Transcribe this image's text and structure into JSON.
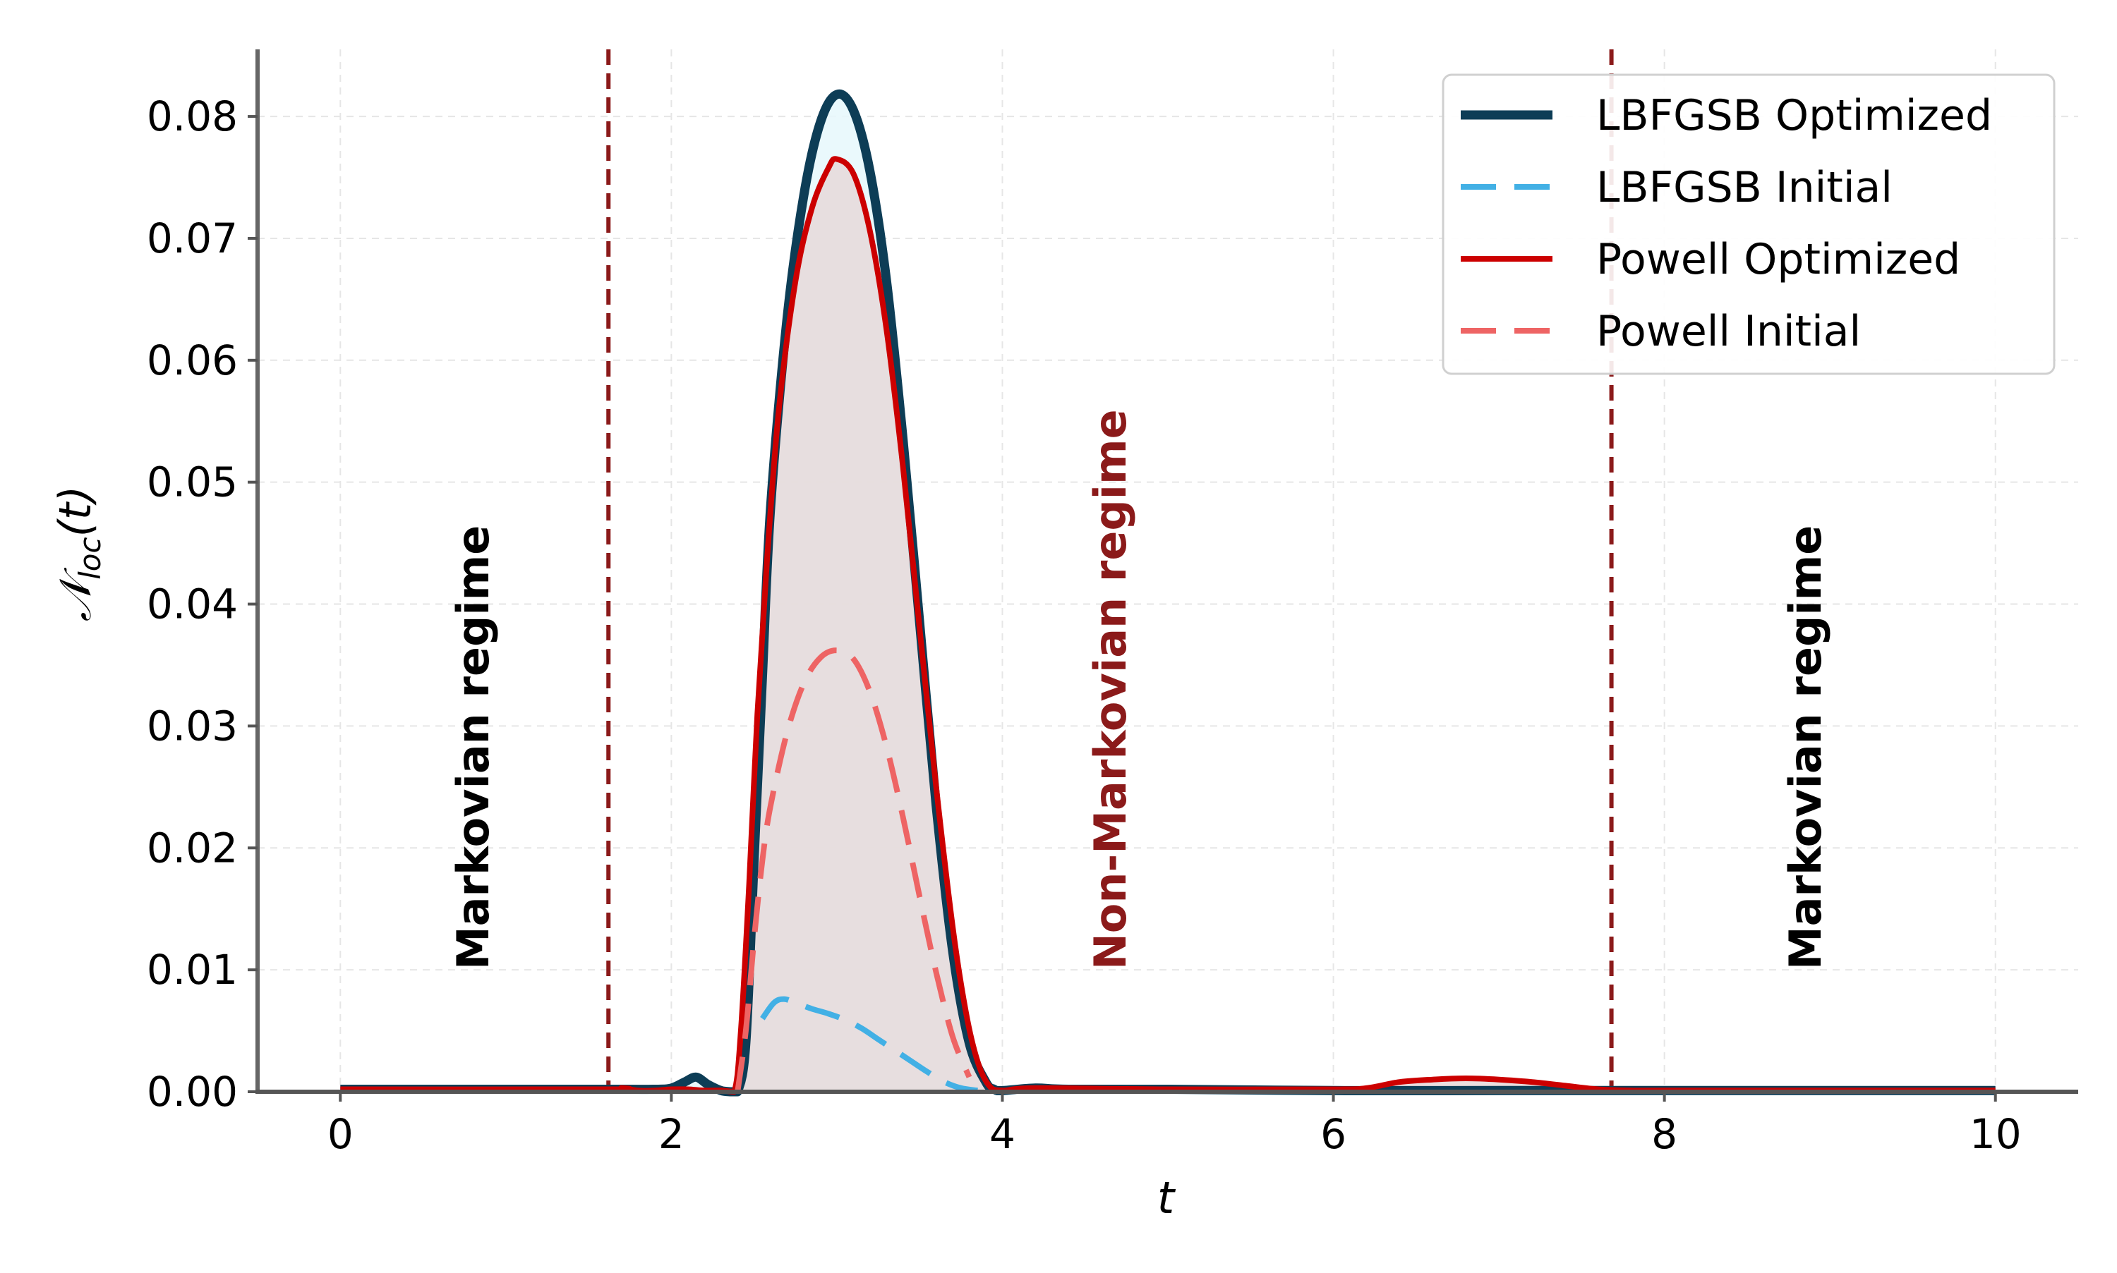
{
  "chart_data": {
    "type": "line",
    "title": "",
    "xlabel": "t",
    "ylabel": "𝒩loc(t)",
    "ylabel_main": "𝒩",
    "ylabel_sub": "loc",
    "ylabel_tail": "(t)",
    "xlim": [
      -0.5,
      10.5
    ],
    "ylim": [
      0,
      0.0855
    ],
    "xticks": [
      0,
      2,
      4,
      6,
      8,
      10
    ],
    "xtick_labels": [
      "0",
      "2",
      "4",
      "6",
      "8",
      "10"
    ],
    "yticks": [
      0,
      0.01,
      0.02,
      0.03,
      0.04,
      0.05,
      0.06,
      0.07,
      0.08
    ],
    "ytick_labels": [
      "0.00",
      "0.01",
      "0.02",
      "0.03",
      "0.04",
      "0.05",
      "0.06",
      "0.07",
      "0.08"
    ],
    "grid": true,
    "legend_position": "top-right",
    "regime_boundaries": [
      1.62,
      7.68
    ],
    "boundary_color": "#8b1a1a",
    "annotations": [
      {
        "text": "Markovian regime",
        "x": 0.8,
        "y_bottom": 0.01,
        "color": "#000000"
      },
      {
        "text": "Non-Markovian regime",
        "x": 4.65,
        "y_bottom": 0.01,
        "color": "#8b1a1a"
      },
      {
        "text": "Markovian regime",
        "x": 8.85,
        "y_bottom": 0.01,
        "color": "#000000"
      }
    ],
    "series": [
      {
        "name": "LBFGSB Optimized",
        "color": "#0d3d56",
        "style": "solid",
        "width": "thick",
        "fill": "#e6f8fb",
        "x": [
          0,
          1.6,
          1.9,
          2.0,
          2.08,
          2.15,
          2.22,
          2.3,
          2.36,
          2.4,
          2.45,
          2.5,
          2.55,
          2.6,
          2.7,
          2.8,
          2.9,
          3.0,
          3.1,
          3.2,
          3.3,
          3.4,
          3.5,
          3.6,
          3.7,
          3.8,
          3.9,
          3.95,
          4.0,
          4.2,
          4.4,
          5.0,
          6.0,
          7.0,
          8.0,
          10.0
        ],
        "y": [
          0.0002,
          0.0002,
          0.0002,
          0.0003,
          0.0008,
          0.0012,
          0.0006,
          0.0001,
          0.0,
          0.0,
          0.004,
          0.019,
          0.034,
          0.048,
          0.0635,
          0.0735,
          0.0795,
          0.0818,
          0.0805,
          0.0755,
          0.0665,
          0.0535,
          0.0385,
          0.0235,
          0.0115,
          0.004,
          0.0008,
          0.0002,
          0.0001,
          0.0003,
          0.0002,
          0.0002,
          0.0001,
          0.0001,
          0.0001,
          0.0001
        ]
      },
      {
        "name": "LBFGSB Initial",
        "color": "#42b0e5",
        "style": "dashed",
        "width": "medium",
        "fill": null,
        "x": [
          2.55,
          2.62,
          2.68,
          2.75,
          2.85,
          2.95,
          3.05,
          3.15,
          3.25,
          3.35,
          3.45,
          3.55,
          3.65,
          3.75,
          3.85
        ],
        "y": [
          0.006,
          0.0073,
          0.0076,
          0.0073,
          0.0068,
          0.0064,
          0.0059,
          0.0052,
          0.0043,
          0.0034,
          0.0025,
          0.0016,
          0.0008,
          0.0003,
          0.0001
        ]
      },
      {
        "name": "Powell Optimized",
        "color": "#cc0000",
        "style": "solid",
        "width": "medium",
        "fill": "#e6d9d9",
        "x": [
          0,
          1.6,
          1.7,
          1.8,
          1.9,
          2.0,
          2.1,
          2.2,
          2.3,
          2.38,
          2.42,
          2.47,
          2.52,
          2.58,
          2.65,
          2.75,
          2.85,
          2.95,
          3.0,
          3.1,
          3.2,
          3.3,
          3.4,
          3.5,
          3.6,
          3.7,
          3.78,
          3.85,
          3.92,
          4.0,
          4.2,
          5.0,
          6.0,
          6.2,
          6.4,
          6.6,
          6.8,
          7.0,
          7.2,
          7.4,
          7.6,
          7.8,
          8.0,
          10.0
        ],
        "y": [
          0.0002,
          0.0002,
          0.0003,
          0.0001,
          0.0001,
          0.0002,
          0.0002,
          0.0001,
          0.0001,
          0.0,
          0.005,
          0.017,
          0.031,
          0.044,
          0.056,
          0.0665,
          0.0725,
          0.0758,
          0.0765,
          0.0753,
          0.0706,
          0.0625,
          0.0512,
          0.038,
          0.025,
          0.0135,
          0.0065,
          0.0025,
          0.0005,
          0.0001,
          0.0003,
          0.0002,
          0.0002,
          0.0003,
          0.0008,
          0.001,
          0.0011,
          0.001,
          0.0008,
          0.0005,
          0.0002,
          0.0001,
          0.0001,
          0.0001
        ]
      },
      {
        "name": "Powell Initial",
        "color": "#ee6464",
        "style": "dashed",
        "width": "medium",
        "fill": null,
        "x": [
          2.4,
          2.45,
          2.5,
          2.55,
          2.6,
          2.7,
          2.8,
          2.9,
          3.0,
          3.1,
          3.2,
          3.3,
          3.4,
          3.5,
          3.6,
          3.7,
          3.8
        ],
        "y": [
          0.0,
          0.005,
          0.0125,
          0.019,
          0.0235,
          0.0295,
          0.0335,
          0.0356,
          0.0362,
          0.0355,
          0.0328,
          0.0283,
          0.0225,
          0.016,
          0.0098,
          0.0045,
          0.0012
        ]
      }
    ]
  }
}
